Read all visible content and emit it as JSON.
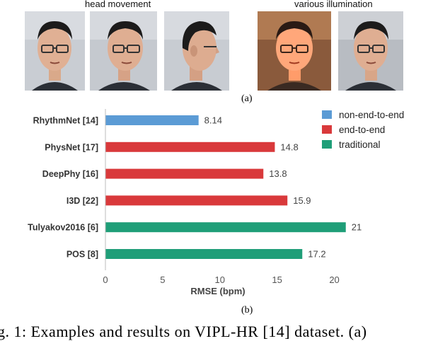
{
  "figure": {
    "group_labels": {
      "head_movement": "head movement",
      "various_illumination": "various illumination"
    },
    "photos": [
      {
        "name": "face-front",
        "group": "head movement",
        "lighting": "normal",
        "pose": "front"
      },
      {
        "name": "face-turn-slight",
        "group": "head movement",
        "lighting": "normal",
        "pose": "slight-right"
      },
      {
        "name": "face-profile",
        "group": "head movement",
        "lighting": "normal",
        "pose": "profile"
      },
      {
        "name": "face-bright-light",
        "group": "various illumination",
        "lighting": "bright",
        "pose": "front"
      },
      {
        "name": "face-dim-light",
        "group": "various illumination",
        "lighting": "normal",
        "pose": "front"
      }
    ],
    "caption_a": "(a)",
    "caption_b": "(b)",
    "caption_text": "g. 1: Examples and results on VIPL-HR [14] dataset. (a)"
  },
  "chart_data": {
    "type": "bar",
    "orientation": "horizontal",
    "categories": [
      "RhythmNet [14]",
      "PhysNet [17]",
      "DeepPhy [16]",
      "I3D [22]",
      "Tulyakov2016 [6]",
      "POS [8]"
    ],
    "values": [
      8.14,
      14.8,
      13.8,
      15.9,
      21,
      17.2
    ],
    "value_labels": [
      "8.14",
      "14.8",
      "13.8",
      "15.9",
      "21",
      "17.2"
    ],
    "groups": [
      "non-end-to-end",
      "end-to-end",
      "end-to-end",
      "end-to-end",
      "traditional",
      "traditional"
    ],
    "legend": [
      {
        "name": "non-end-to-end",
        "color": "#5b9bd5"
      },
      {
        "name": "end-to-end",
        "color": "#d9393b"
      },
      {
        "name": "traditional",
        "color": "#1f9e78"
      }
    ],
    "legend_position": "top-right",
    "xlabel": "RMSE (bpm)",
    "ylabel": "",
    "xlim": [
      0,
      22.5
    ],
    "xticks": [
      0,
      5,
      10,
      15,
      20
    ],
    "grid": false
  }
}
